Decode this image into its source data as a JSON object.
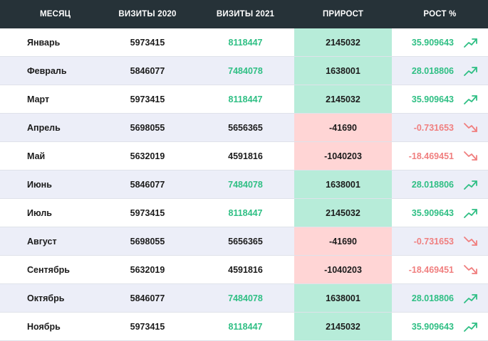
{
  "columns": [
    "МЕСЯЦ",
    "ВИЗИТЫ 2020",
    "ВИЗИТЫ 2021",
    "ПРИРОСТ",
    "РОСТ %"
  ],
  "colors": {
    "header_bg": "#263238",
    "up": "#2fbf84",
    "down": "#f07f7f",
    "up_bg": "#b7ecd9",
    "down_bg": "#ffd5d5",
    "even_row_bg": "#eceef8"
  },
  "rows": [
    {
      "month": "Январь",
      "visits_2020": "5973415",
      "visits_2021": "8118447",
      "growth": "2145032",
      "growth_pct": "35.909643",
      "trend": "up",
      "trend_icon": "trending-up-icon"
    },
    {
      "month": "Февраль",
      "visits_2020": "5846077",
      "visits_2021": "7484078",
      "growth": "1638001",
      "growth_pct": "28.018806",
      "trend": "up",
      "trend_icon": "trending-up-icon"
    },
    {
      "month": "Март",
      "visits_2020": "5973415",
      "visits_2021": "8118447",
      "growth": "2145032",
      "growth_pct": "35.909643",
      "trend": "up",
      "trend_icon": "trending-up-icon"
    },
    {
      "month": "Апрель",
      "visits_2020": "5698055",
      "visits_2021": "5656365",
      "growth": "-41690",
      "growth_pct": "-0.731653",
      "trend": "down",
      "trend_icon": "trending-down-icon"
    },
    {
      "month": "Май",
      "visits_2020": "5632019",
      "visits_2021": "4591816",
      "growth": "-1040203",
      "growth_pct": "-18.469451",
      "trend": "down",
      "trend_icon": "trending-down-icon"
    },
    {
      "month": "Июнь",
      "visits_2020": "5846077",
      "visits_2021": "7484078",
      "growth": "1638001",
      "growth_pct": "28.018806",
      "trend": "up",
      "trend_icon": "trending-up-icon"
    },
    {
      "month": "Июль",
      "visits_2020": "5973415",
      "visits_2021": "8118447",
      "growth": "2145032",
      "growth_pct": "35.909643",
      "trend": "up",
      "trend_icon": "trending-up-icon"
    },
    {
      "month": "Август",
      "visits_2020": "5698055",
      "visits_2021": "5656365",
      "growth": "-41690",
      "growth_pct": "-0.731653",
      "trend": "down",
      "trend_icon": "trending-down-icon"
    },
    {
      "month": "Сентябрь",
      "visits_2020": "5632019",
      "visits_2021": "4591816",
      "growth": "-1040203",
      "growth_pct": "-18.469451",
      "trend": "down",
      "trend_icon": "trending-down-icon"
    },
    {
      "month": "Октябрь",
      "visits_2020": "5846077",
      "visits_2021": "7484078",
      "growth": "1638001",
      "growth_pct": "28.018806",
      "trend": "up",
      "trend_icon": "trending-up-icon"
    },
    {
      "month": "Ноябрь",
      "visits_2020": "5973415",
      "visits_2021": "8118447",
      "growth": "2145032",
      "growth_pct": "35.909643",
      "trend": "up",
      "trend_icon": "trending-up-icon"
    }
  ]
}
